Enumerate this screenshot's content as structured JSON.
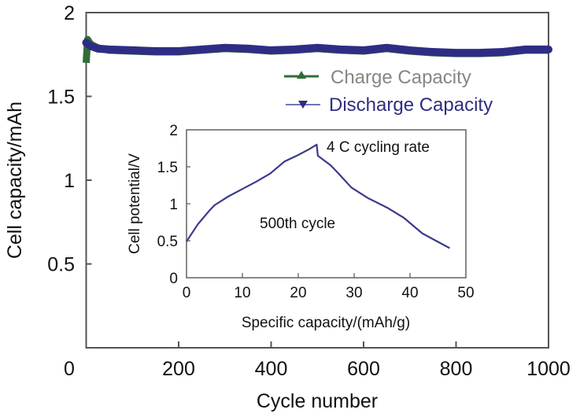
{
  "chart_data": [
    {
      "type": "line",
      "title": "",
      "xlabel": "Cycle number",
      "ylabel": "Cell capacity/mAh",
      "xlim": [
        0,
        1000
      ],
      "ylim": [
        0,
        2
      ],
      "xticks": [
        0,
        200,
        400,
        600,
        800,
        1000
      ],
      "xtick_labels": [
        "0",
        "200",
        "400",
        "600",
        "800",
        "1000"
      ],
      "yticks": [
        0.5,
        1,
        1.5,
        2
      ],
      "ytick_labels": [
        "0.5",
        "1",
        "1.5",
        "2"
      ],
      "grid": false,
      "legend_position": "top-right",
      "series": [
        {
          "name": "Charge Capacity",
          "marker": "triangle-up",
          "color": "#2f6e35",
          "label_color": "#8a8580",
          "x": [
            0,
            3,
            10,
            25,
            50,
            100,
            150,
            200,
            250,
            300,
            350,
            400,
            450,
            500,
            550,
            600,
            650,
            700,
            750,
            800,
            850,
            900,
            950,
            1000
          ],
          "y": [
            1.7,
            1.84,
            1.81,
            1.79,
            1.775,
            1.77,
            1.765,
            1.765,
            1.775,
            1.785,
            1.78,
            1.77,
            1.775,
            1.785,
            1.775,
            1.77,
            1.785,
            1.77,
            1.76,
            1.755,
            1.755,
            1.76,
            1.775,
            1.775
          ]
        },
        {
          "name": "Discharge Capacity",
          "marker": "triangle-down",
          "color": "#2e2d85",
          "label_color": "#2e2d80",
          "x": [
            0,
            10,
            25,
            50,
            100,
            150,
            200,
            250,
            300,
            350,
            400,
            450,
            500,
            550,
            600,
            650,
            700,
            750,
            800,
            850,
            900,
            950,
            1000
          ],
          "y": [
            1.82,
            1.8,
            1.785,
            1.78,
            1.775,
            1.77,
            1.77,
            1.78,
            1.79,
            1.785,
            1.775,
            1.78,
            1.79,
            1.78,
            1.775,
            1.79,
            1.775,
            1.765,
            1.76,
            1.76,
            1.765,
            1.78,
            1.78
          ]
        }
      ]
    },
    {
      "type": "line",
      "title": "",
      "xlabel": "Specific capacity/(mAh/g)",
      "ylabel": "Cell potential/V",
      "xlim": [
        0,
        50
      ],
      "ylim": [
        0,
        2
      ],
      "xticks": [
        0,
        10,
        20,
        30,
        40,
        50
      ],
      "xtick_labels": [
        "0",
        "10",
        "20",
        "30",
        "40",
        "50"
      ],
      "yticks": [
        0,
        0.5,
        1,
        1.5,
        2
      ],
      "ytick_labels": [
        "0",
        "0.5",
        "1",
        "1.5",
        "2"
      ],
      "grid": false,
      "annotations": [
        "4 C cycling rate",
        "500th cycle"
      ],
      "series": [
        {
          "name": "500th cycle",
          "color": "#3a3a8c",
          "x": [
            0,
            2,
            4,
            5,
            7.5,
            10,
            12.5,
            15,
            17.5,
            20,
            22,
            23.3,
            23.5,
            25.8,
            27.2,
            29.5,
            32.4,
            36.1,
            38.9,
            42.2,
            47.1
          ],
          "y": [
            0.49,
            0.72,
            0.9,
            0.98,
            1.1,
            1.2,
            1.3,
            1.41,
            1.57,
            1.66,
            1.74,
            1.8,
            1.65,
            1.52,
            1.41,
            1.22,
            1.08,
            0.94,
            0.81,
            0.6,
            0.4
          ]
        }
      ]
    }
  ]
}
